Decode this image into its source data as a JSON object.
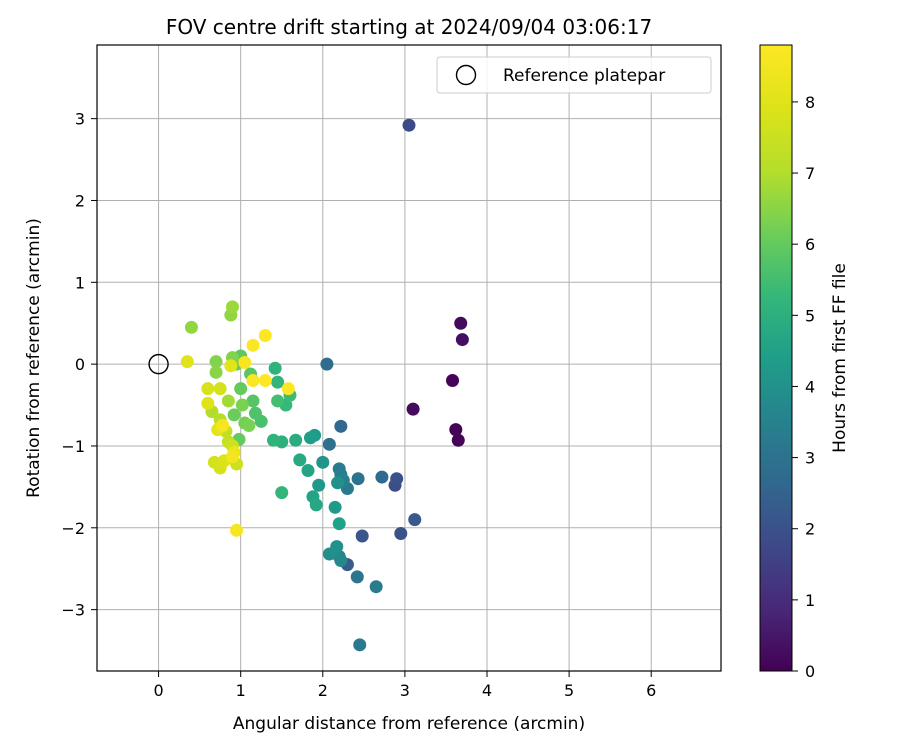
{
  "chart_data": {
    "type": "scatter",
    "title": "FOV centre drift starting at 2024/09/04 03:06:17",
    "xlabel": "Angular distance from reference (arcmin)",
    "ylabel": "Rotation from reference (arcmin)",
    "xlim": [
      -0.75,
      6.85
    ],
    "ylim": [
      -3.75,
      3.9
    ],
    "xticks": [
      0,
      1,
      2,
      3,
      4,
      5,
      6
    ],
    "yticks": [
      -3,
      -2,
      -1,
      0,
      1,
      2,
      3
    ],
    "grid": true,
    "legend": {
      "placement": "top-right",
      "entries": [
        "Reference platepar"
      ]
    },
    "colorbar": {
      "label": "Hours from first FF file",
      "colormap": "viridis",
      "range": [
        0,
        8.8
      ],
      "ticks": [
        0,
        1,
        2,
        3,
        4,
        5,
        6,
        7,
        8
      ]
    },
    "reference_point": {
      "x": 0,
      "y": 0
    },
    "series": [
      {
        "marker": "filled-circle",
        "points": [
          {
            "x": 3.58,
            "y": -0.2,
            "c": 0.1
          },
          {
            "x": 3.62,
            "y": -0.8,
            "c": 0.05
          },
          {
            "x": 3.65,
            "y": -0.93,
            "c": 0.1
          },
          {
            "x": 3.68,
            "y": 0.5,
            "c": 0.2
          },
          {
            "x": 3.7,
            "y": 0.3,
            "c": 0.3
          },
          {
            "x": 3.1,
            "y": -0.55,
            "c": 0.25
          },
          {
            "x": 3.05,
            "y": 2.92,
            "c": 1.8
          },
          {
            "x": 2.88,
            "y": -1.48,
            "c": 1.9
          },
          {
            "x": 2.9,
            "y": -1.4,
            "c": 2.0
          },
          {
            "x": 2.95,
            "y": -2.07,
            "c": 2.0
          },
          {
            "x": 3.12,
            "y": -1.9,
            "c": 2.2
          },
          {
            "x": 2.48,
            "y": -2.1,
            "c": 2.1
          },
          {
            "x": 2.3,
            "y": -2.45,
            "c": 2.3
          },
          {
            "x": 2.72,
            "y": -1.38,
            "c": 2.7
          },
          {
            "x": 2.42,
            "y": -2.6,
            "c": 3.1
          },
          {
            "x": 2.65,
            "y": -2.72,
            "c": 3.3
          },
          {
            "x": 2.45,
            "y": -3.43,
            "c": 3.2
          },
          {
            "x": 2.22,
            "y": -0.76,
            "c": 2.6
          },
          {
            "x": 2.05,
            "y": 0.0,
            "c": 2.8
          },
          {
            "x": 2.08,
            "y": -0.98,
            "c": 2.9
          },
          {
            "x": 2.43,
            "y": -1.4,
            "c": 3.0
          },
          {
            "x": 2.3,
            "y": -1.52,
            "c": 3.2
          },
          {
            "x": 2.2,
            "y": -1.28,
            "c": 3.3
          },
          {
            "x": 2.22,
            "y": -1.35,
            "c": 3.4
          },
          {
            "x": 2.25,
            "y": -1.42,
            "c": 3.5
          },
          {
            "x": 2.2,
            "y": -2.35,
            "c": 3.6
          },
          {
            "x": 2.22,
            "y": -2.4,
            "c": 3.7
          },
          {
            "x": 2.15,
            "y": -2.3,
            "c": 3.8
          },
          {
            "x": 2.08,
            "y": -2.32,
            "c": 3.9
          },
          {
            "x": 2.17,
            "y": -2.23,
            "c": 4.0
          },
          {
            "x": 2.18,
            "y": -1.45,
            "c": 4.0
          },
          {
            "x": 2.0,
            "y": -1.2,
            "c": 4.1
          },
          {
            "x": 1.95,
            "y": -1.48,
            "c": 4.2
          },
          {
            "x": 2.15,
            "y": -1.75,
            "c": 4.3
          },
          {
            "x": 1.9,
            "y": -0.87,
            "c": 4.3
          },
          {
            "x": 1.85,
            "y": -0.9,
            "c": 4.4
          },
          {
            "x": 2.2,
            "y": -1.95,
            "c": 4.5
          },
          {
            "x": 1.82,
            "y": -1.3,
            "c": 4.6
          },
          {
            "x": 1.88,
            "y": -1.62,
            "c": 4.6
          },
          {
            "x": 1.92,
            "y": -1.72,
            "c": 4.7
          },
          {
            "x": 1.72,
            "y": -1.17,
            "c": 4.8
          },
          {
            "x": 1.67,
            "y": -0.93,
            "c": 4.9
          },
          {
            "x": 1.5,
            "y": -0.95,
            "c": 5.0
          },
          {
            "x": 1.4,
            "y": -0.93,
            "c": 5.1
          },
          {
            "x": 1.5,
            "y": -1.57,
            "c": 5.2
          },
          {
            "x": 1.42,
            "y": -0.05,
            "c": 5.1
          },
          {
            "x": 1.45,
            "y": -0.22,
            "c": 5.2
          },
          {
            "x": 1.55,
            "y": -0.5,
            "c": 5.3
          },
          {
            "x": 1.6,
            "y": -0.38,
            "c": 5.4
          },
          {
            "x": 1.45,
            "y": -0.45,
            "c": 5.5
          },
          {
            "x": 1.25,
            "y": -0.7,
            "c": 5.6
          },
          {
            "x": 1.18,
            "y": -0.6,
            "c": 5.7
          },
          {
            "x": 1.15,
            "y": -0.45,
            "c": 5.8
          },
          {
            "x": 1.12,
            "y": -0.12,
            "c": 5.8
          },
          {
            "x": 1.0,
            "y": 0.1,
            "c": 5.9
          },
          {
            "x": 0.98,
            "y": -0.92,
            "c": 6.0
          },
          {
            "x": 1.0,
            "y": -0.3,
            "c": 6.0
          },
          {
            "x": 0.92,
            "y": -0.62,
            "c": 6.1
          },
          {
            "x": 0.95,
            "y": 0.0,
            "c": 6.1
          },
          {
            "x": 1.05,
            "y": -0.72,
            "c": 6.2
          },
          {
            "x": 1.1,
            "y": -0.75,
            "c": 6.3
          },
          {
            "x": 1.02,
            "y": -0.5,
            "c": 6.3
          },
          {
            "x": 0.9,
            "y": 0.08,
            "c": 6.4
          },
          {
            "x": 0.7,
            "y": 0.03,
            "c": 6.4
          },
          {
            "x": 0.7,
            "y": -0.1,
            "c": 6.5
          },
          {
            "x": 0.88,
            "y": 0.6,
            "c": 6.6
          },
          {
            "x": 0.9,
            "y": 0.7,
            "c": 6.7
          },
          {
            "x": 0.4,
            "y": 0.45,
            "c": 6.6
          },
          {
            "x": 0.85,
            "y": -0.45,
            "c": 6.8
          },
          {
            "x": 0.65,
            "y": -0.58,
            "c": 7.0
          },
          {
            "x": 0.75,
            "y": -0.68,
            "c": 7.1
          },
          {
            "x": 0.82,
            "y": -0.82,
            "c": 7.3
          },
          {
            "x": 0.85,
            "y": -0.95,
            "c": 7.4
          },
          {
            "x": 0.9,
            "y": -1.0,
            "c": 7.6
          },
          {
            "x": 0.95,
            "y": -1.22,
            "c": 7.6
          },
          {
            "x": 0.68,
            "y": -1.2,
            "c": 7.7
          },
          {
            "x": 0.75,
            "y": -1.27,
            "c": 7.8
          },
          {
            "x": 0.8,
            "y": -1.18,
            "c": 7.9
          },
          {
            "x": 0.75,
            "y": -0.3,
            "c": 7.7
          },
          {
            "x": 0.6,
            "y": -0.3,
            "c": 7.8
          },
          {
            "x": 0.35,
            "y": 0.03,
            "c": 8.0
          },
          {
            "x": 0.6,
            "y": -0.48,
            "c": 8.0
          },
          {
            "x": 0.72,
            "y": -0.8,
            "c": 8.1
          },
          {
            "x": 0.88,
            "y": -0.02,
            "c": 8.1
          },
          {
            "x": 0.92,
            "y": -1.08,
            "c": 8.3
          },
          {
            "x": 0.9,
            "y": -1.13,
            "c": 8.5
          },
          {
            "x": 0.95,
            "y": -2.03,
            "c": 8.6
          },
          {
            "x": 1.05,
            "y": 0.02,
            "c": 8.6
          },
          {
            "x": 1.15,
            "y": 0.23,
            "c": 8.7
          },
          {
            "x": 1.3,
            "y": 0.35,
            "c": 8.8
          },
          {
            "x": 1.15,
            "y": -0.2,
            "c": 8.7
          },
          {
            "x": 1.3,
            "y": -0.2,
            "c": 8.8
          },
          {
            "x": 1.58,
            "y": -0.3,
            "c": 8.8
          },
          {
            "x": 0.78,
            "y": -0.75,
            "c": 8.6
          }
        ]
      }
    ]
  }
}
